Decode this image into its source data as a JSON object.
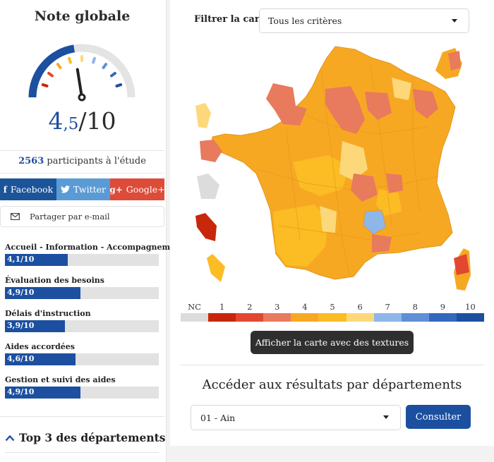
{
  "summary": {
    "title": "Note globale",
    "score_main": "4",
    "score_decimal": ",5",
    "score_denominator": "/10",
    "gauge_level": 4.5,
    "participants_count": "2563",
    "participants_label": "participants à l'étude"
  },
  "share": {
    "facebook_icon": "f",
    "facebook_label": "Facebook",
    "twitter_label": "Twitter",
    "googleplus_icon": "g+",
    "googleplus_label": "Google+",
    "email_label": "Partager par e-mail",
    "colors": {
      "facebook": "#1c5499",
      "twitter": "#5a9bd5",
      "googleplus": "#dd4b39"
    }
  },
  "criteria": [
    {
      "label": "Accueil - Information - Accompagnement",
      "value_text": "4,1/10",
      "value": 4.1
    },
    {
      "label": "Évaluation des besoins",
      "value_text": "4,9/10",
      "value": 4.9
    },
    {
      "label": "Délais d'instruction",
      "value_text": "3,9/10",
      "value": 3.9
    },
    {
      "label": "Aides accordées",
      "value_text": "4,6/10",
      "value": 4.6
    },
    {
      "label": "Gestion et suivi des aides",
      "value_text": "4,9/10",
      "value": 4.9
    }
  ],
  "top3": {
    "chevron": "^",
    "label": "Top 3 des départements"
  },
  "map_panel": {
    "filter_label": "Filtrer la carte",
    "filter_value": "Tous les critères",
    "legend_labels": [
      "NC",
      "1",
      "2",
      "3",
      "4",
      "5",
      "6",
      "7",
      "8",
      "9",
      "10"
    ],
    "legend_colors": [
      "#dcdcdc",
      "#c8270c",
      "#e2482f",
      "#e87a5e",
      "#f7a823",
      "#fbbc24",
      "#fdd87b",
      "#8fb6e8",
      "#5f8fd5",
      "#3468be",
      "#1c4fa0"
    ],
    "texture_button": "Afficher la carte avec des textures",
    "access_title": "Accéder aux résultats par départements",
    "department_value": "01 - Ain",
    "consult_button": "Consulter"
  },
  "colors": {
    "accent": "#1c4fa0"
  }
}
